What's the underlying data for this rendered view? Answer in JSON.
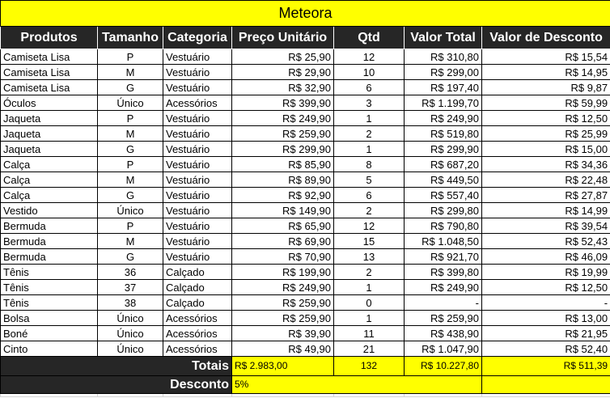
{
  "title": "Meteora",
  "headers": [
    "Produtos",
    "Tamanho",
    "Categoria",
    "Preço Unitário",
    "Qtd",
    "Valor Total",
    "Valor de Desconto"
  ],
  "rows": [
    [
      "Camiseta Lisa",
      "P",
      "Vestuário",
      "R$ 25,90",
      "12",
      "R$ 310,80",
      "R$ 15,54"
    ],
    [
      "Camiseta Lisa",
      "M",
      "Vestuário",
      "R$ 29,90",
      "10",
      "R$ 299,00",
      "R$ 14,95"
    ],
    [
      "Camiseta Lisa",
      "G",
      "Vestuário",
      "R$ 32,90",
      "6",
      "R$ 197,40",
      "R$ 9,87"
    ],
    [
      "Óculos",
      "Único",
      "Acessórios",
      "R$ 399,90",
      "3",
      "R$ 1.199,70",
      "R$ 59,99"
    ],
    [
      "Jaqueta",
      "P",
      "Vestuário",
      "R$ 249,90",
      "1",
      "R$ 249,90",
      "R$ 12,50"
    ],
    [
      "Jaqueta",
      "M",
      "Vestuário",
      "R$ 259,90",
      "2",
      "R$ 519,80",
      "R$ 25,99"
    ],
    [
      "Jaqueta",
      "G",
      "Vestuário",
      "R$ 299,90",
      "1",
      "R$ 299,90",
      "R$ 15,00"
    ],
    [
      "Calça",
      "P",
      "Vestuário",
      "R$ 85,90",
      "8",
      "R$ 687,20",
      "R$ 34,36"
    ],
    [
      "Calça",
      "M",
      "Vestuário",
      "R$ 89,90",
      "5",
      "R$ 449,50",
      "R$ 22,48"
    ],
    [
      "Calça",
      "G",
      "Vestuário",
      "R$ 92,90",
      "6",
      "R$ 557,40",
      "R$ 27,87"
    ],
    [
      "Vestido",
      "Único",
      "Vestuário",
      "R$ 149,90",
      "2",
      "R$ 299,80",
      "R$ 14,99"
    ],
    [
      "Bermuda",
      "P",
      "Vestuário",
      "R$ 65,90",
      "12",
      "R$ 790,80",
      "R$ 39,54"
    ],
    [
      "Bermuda",
      "M",
      "Vestuário",
      "R$ 69,90",
      "15",
      "R$ 1.048,50",
      "R$ 52,43"
    ],
    [
      "Bermuda",
      "G",
      "Vestuário",
      "R$ 70,90",
      "13",
      "R$ 921,70",
      "R$ 46,09"
    ],
    [
      "Tênis",
      "36",
      "Calçado",
      "R$ 199,90",
      "2",
      "R$ 399,80",
      "R$ 19,99"
    ],
    [
      "Tênis",
      "37",
      "Calçado",
      "R$ 249,90",
      "1",
      "R$ 249,90",
      "R$ 12,50"
    ],
    [
      "Tênis",
      "38",
      "Calçado",
      "R$ 259,90",
      "0",
      "-",
      "-"
    ],
    [
      "Bolsa",
      "Único",
      "Acessórios",
      "R$ 259,90",
      "1",
      "R$ 259,90",
      "R$ 13,00"
    ],
    [
      "Boné",
      "Único",
      "Acessórios",
      "R$ 39,90",
      "11",
      "R$ 438,90",
      "R$ 21,95"
    ],
    [
      "Cinto",
      "Único",
      "Acessórios",
      "R$ 49,90",
      "21",
      "R$ 1.047,90",
      "R$ 52,40"
    ]
  ],
  "totals": {
    "label": "Totais",
    "preco": "R$ 2.983,00",
    "qtd": "132",
    "valor_total": "R$ 10.227,80",
    "desconto": "R$ 511,39"
  },
  "discount": {
    "label": "Desconto",
    "value": "5%"
  },
  "colors": {
    "header_bg": "#262626",
    "highlight": "#ffff00"
  }
}
